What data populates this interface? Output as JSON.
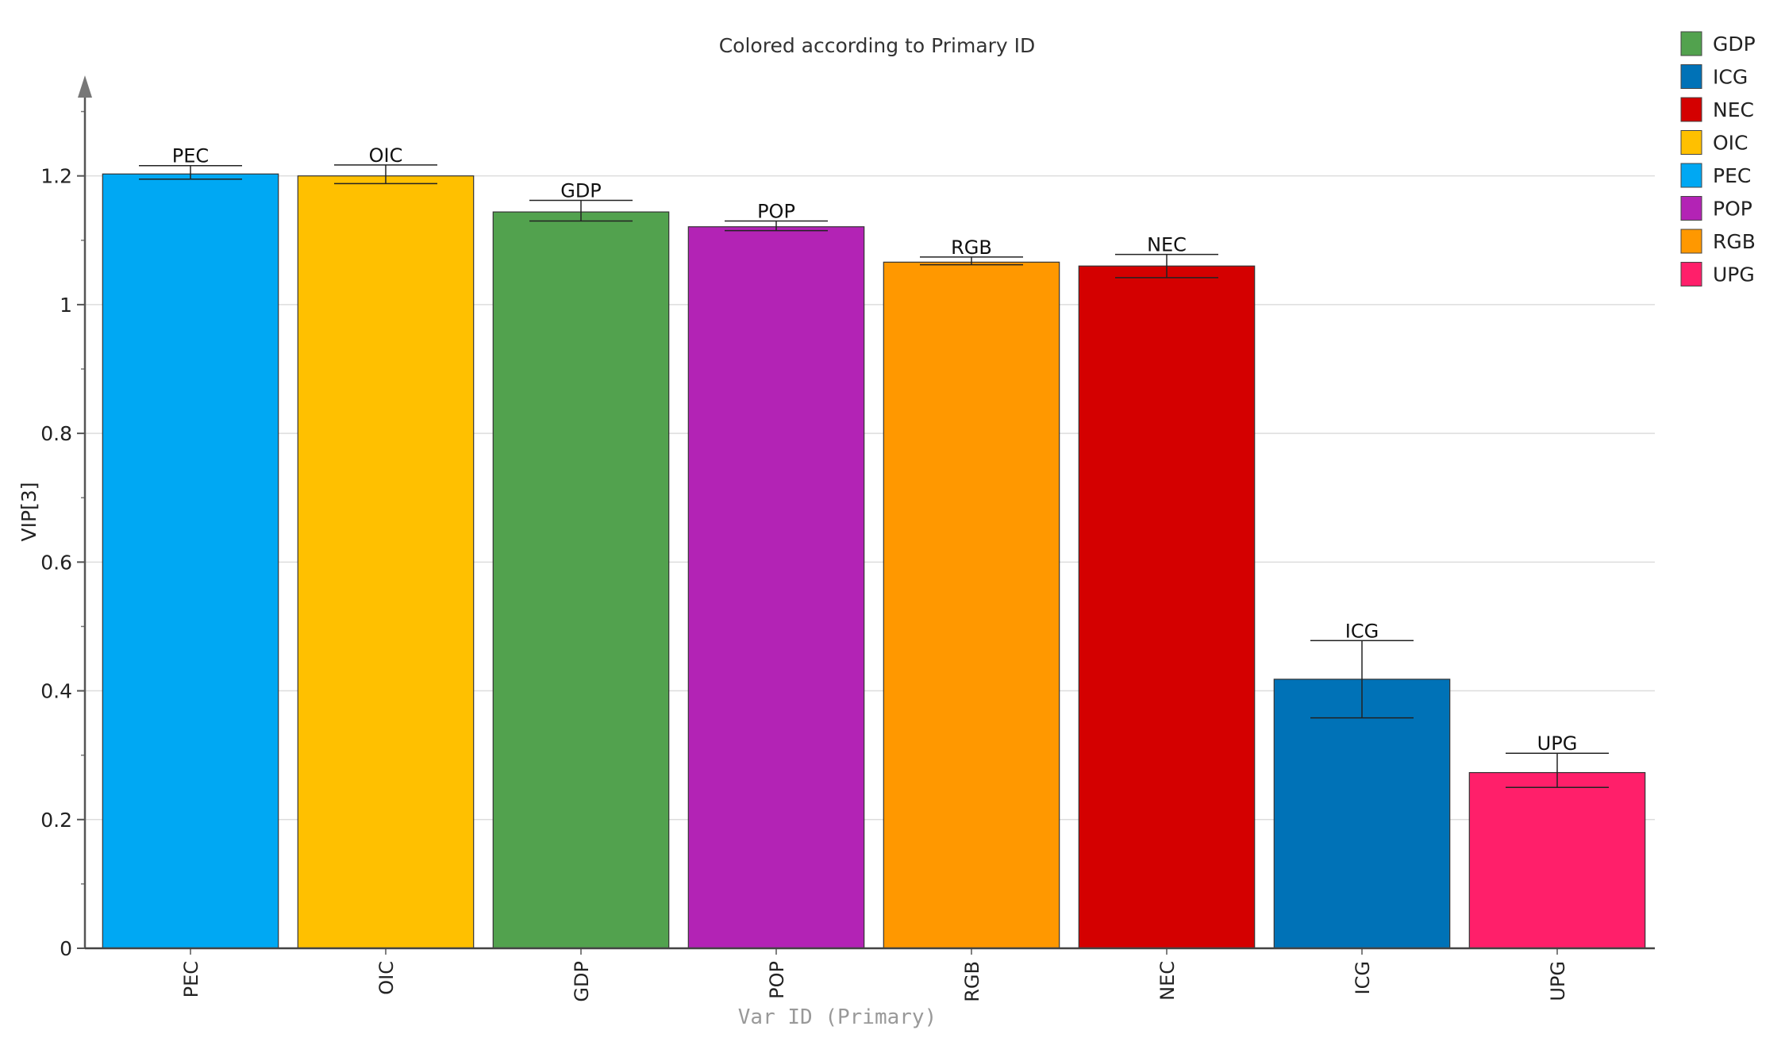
{
  "chart_data": {
    "type": "bar",
    "title": "Colored according to Primary ID",
    "xlabel": "Var ID (Primary)",
    "ylabel": "VIP[3]",
    "ylim": [
      0,
      1.35
    ],
    "yticks": [
      0,
      0.2,
      0.4,
      0.6,
      0.8,
      1,
      1.2
    ],
    "ytick_labels": [
      "0",
      "0.2",
      "0.4",
      "0.6",
      "0.8",
      "1",
      "1.2"
    ],
    "grid": true,
    "legend_position": "top-right",
    "categories": [
      "PEC",
      "OIC",
      "GDP",
      "POP",
      "RGB",
      "NEC",
      "ICG",
      "UPG"
    ],
    "values": [
      1.203,
      1.2,
      1.144,
      1.121,
      1.066,
      1.06,
      0.418,
      0.273
    ],
    "error_low": [
      1.195,
      1.188,
      1.13,
      1.115,
      1.062,
      1.042,
      0.358,
      0.25
    ],
    "error_high": [
      1.216,
      1.217,
      1.162,
      1.13,
      1.074,
      1.078,
      0.478,
      0.303
    ],
    "colors": [
      "#00a8f3",
      "#ffc000",
      "#52a24e",
      "#b323b5",
      "#ff9800",
      "#d40000",
      "#0072b7",
      "#ff1f6a"
    ],
    "legend": [
      {
        "label": "GDP",
        "color": "#52a24e"
      },
      {
        "label": "ICG",
        "color": "#0072b7"
      },
      {
        "label": "NEC",
        "color": "#d40000"
      },
      {
        "label": "OIC",
        "color": "#ffc000"
      },
      {
        "label": "PEC",
        "color": "#00a8f3"
      },
      {
        "label": "POP",
        "color": "#b323b5"
      },
      {
        "label": "RGB",
        "color": "#ff9800"
      },
      {
        "label": "UPG",
        "color": "#ff1f6a"
      }
    ]
  }
}
